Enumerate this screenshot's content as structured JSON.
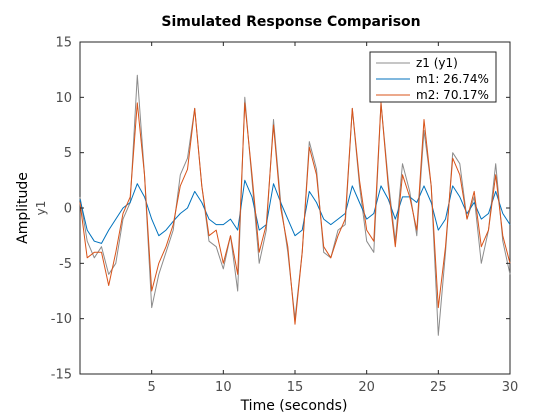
{
  "chart_data": {
    "type": "line",
    "title": "Simulated Response Comparison",
    "xlabel": "Time (seconds)",
    "ylabel": "Amplitude",
    "ylabel_sub": "y1",
    "xlim": [
      0,
      30
    ],
    "ylim": [
      -15,
      15
    ],
    "xticks": [
      5,
      10,
      15,
      20,
      25,
      30
    ],
    "yticks": [
      -15,
      -10,
      -5,
      0,
      5,
      10,
      15
    ],
    "xtick_labels": [
      "5",
      "10",
      "15",
      "20",
      "25",
      "30"
    ],
    "ytick_labels": [
      "-15",
      "-10",
      "-5",
      "0",
      "5",
      "10",
      "15"
    ],
    "grid": false,
    "legend_position": "top-right",
    "x": [
      0.0,
      0.5,
      1.0,
      1.5,
      2.0,
      2.5,
      3.0,
      3.5,
      4.0,
      4.5,
      5.0,
      5.5,
      6.0,
      6.5,
      7.0,
      7.5,
      8.0,
      8.5,
      9.0,
      9.5,
      10.0,
      10.5,
      11.0,
      11.5,
      12.0,
      12.5,
      13.0,
      13.5,
      14.0,
      14.5,
      15.0,
      15.5,
      16.0,
      16.5,
      17.0,
      17.5,
      18.0,
      18.5,
      19.0,
      19.5,
      20.0,
      20.5,
      21.0,
      21.5,
      22.0,
      22.5,
      23.0,
      23.5,
      24.0,
      24.5,
      25.0,
      25.5,
      26.0,
      26.5,
      27.0,
      27.5,
      28.0,
      28.5,
      29.0,
      29.5,
      30.0
    ],
    "series": [
      {
        "name": "z1 (y1)",
        "color": "#8c8c8c",
        "values": [
          1.0,
          -3.0,
          -4.5,
          -3.5,
          -6.0,
          -5.0,
          -1.0,
          0.5,
          12.0,
          3.0,
          -9.0,
          -6.0,
          -4.0,
          -2.0,
          3.0,
          4.5,
          9.0,
          2.0,
          -3.0,
          -3.5,
          -5.5,
          -2.5,
          -7.5,
          10.0,
          2.5,
          -5.0,
          -2.0,
          8.0,
          0.5,
          -4.0,
          -10.0,
          -4.0,
          6.0,
          3.5,
          -4.0,
          -4.5,
          -2.0,
          -1.5,
          9.0,
          2.0,
          -3.0,
          -4.0,
          9.5,
          2.5,
          -3.0,
          4.0,
          1.5,
          -2.5,
          7.0,
          2.0,
          -11.5,
          -4.0,
          5.0,
          4.0,
          -1.0,
          1.0,
          -5.0,
          -2.0,
          4.0,
          -3.0,
          -6.0
        ]
      },
      {
        "name": "m1: 26.74%",
        "color": "#0072bd",
        "values": [
          0.8,
          -2.0,
          -3.0,
          -3.2,
          -2.0,
          -1.0,
          0.0,
          0.5,
          2.2,
          1.0,
          -1.0,
          -2.5,
          -2.0,
          -1.2,
          -0.5,
          0.0,
          1.5,
          0.5,
          -1.0,
          -1.5,
          -1.5,
          -1.0,
          -2.0,
          2.5,
          1.0,
          -2.0,
          -1.5,
          2.2,
          0.5,
          -1.0,
          -2.5,
          -2.0,
          1.5,
          0.5,
          -1.0,
          -1.5,
          -1.0,
          -0.5,
          2.0,
          0.5,
          -1.0,
          -0.5,
          2.0,
          0.8,
          -1.0,
          1.0,
          1.0,
          0.5,
          2.0,
          0.5,
          -2.0,
          -1.0,
          2.0,
          1.0,
          -0.5,
          0.5,
          -1.0,
          -0.5,
          1.5,
          -0.5,
          -1.5
        ]
      },
      {
        "name": "m2: 70.17%",
        "color": "#d95319",
        "values": [
          0.5,
          -4.5,
          -4.0,
          -4.0,
          -7.0,
          -4.0,
          -0.5,
          1.0,
          9.5,
          3.0,
          -7.5,
          -5.0,
          -3.5,
          -1.5,
          2.0,
          3.5,
          9.0,
          2.0,
          -2.5,
          -2.0,
          -5.0,
          -2.5,
          -6.0,
          9.5,
          3.0,
          -4.0,
          -1.5,
          7.5,
          0.0,
          -3.5,
          -10.5,
          -4.0,
          5.5,
          3.0,
          -3.5,
          -4.5,
          -2.5,
          -1.0,
          9.0,
          2.5,
          -2.0,
          -3.0,
          9.5,
          2.0,
          -3.5,
          3.0,
          1.0,
          -2.0,
          8.0,
          2.0,
          -9.0,
          -3.5,
          4.5,
          3.0,
          -1.0,
          1.5,
          -3.5,
          -2.0,
          3.0,
          -2.5,
          -5.0
        ]
      }
    ]
  },
  "legend": {
    "entries": [
      "z1 (y1)",
      "m1: 26.74%",
      "m2: 70.17%"
    ]
  }
}
